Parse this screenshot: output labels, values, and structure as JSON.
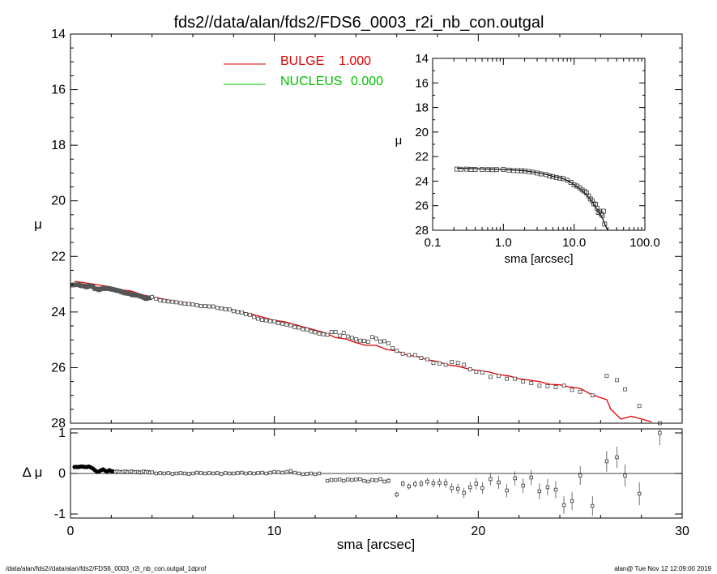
{
  "title": "fds2//data/alan/fds2/FDS6_0003_r2i_nb_con.outgal",
  "footer_left": "/data/alan/fds2//data/alan/fds2/FDS6_0003_r2i_nb_con.outgal_1dprof",
  "footer_right": "alan@  Tue Nov 12 12:09:00 2019",
  "colors": {
    "bulge": "#e00000",
    "nucleus": "#00c000",
    "data": "#000000"
  },
  "chart_data": [
    {
      "type": "scatter",
      "panel": "main",
      "xlabel": "sma [arcsec]",
      "ylabel": "μ",
      "xlim": [
        0,
        30
      ],
      "ylim": [
        28,
        14
      ],
      "y_inverted": true,
      "xticks": [
        "0",
        "10",
        "20",
        "30"
      ],
      "yticks": [
        "14",
        "16",
        "18",
        "20",
        "22",
        "24",
        "26",
        "28"
      ],
      "legend": [
        {
          "name": "BULGE",
          "value": "1.000",
          "color": "#e00000"
        },
        {
          "name": "NUCLEUS",
          "value": "0.000",
          "color": "#00c000"
        }
      ],
      "legend_position": "top-left",
      "observed": {
        "x": [
          0.1,
          0.2,
          0.3,
          0.4,
          0.5,
          0.6,
          0.7,
          0.8,
          0.9,
          1.0,
          1.1,
          1.2,
          1.3,
          1.4,
          1.5,
          1.6,
          1.7,
          1.8,
          1.9,
          2.0,
          2.1,
          2.2,
          2.3,
          2.4,
          2.5,
          2.6,
          2.7,
          2.8,
          2.9,
          3.0,
          3.1,
          3.2,
          3.3,
          3.4,
          3.5,
          3.6,
          3.7,
          3.8,
          3.9,
          4.0,
          4.2,
          4.4,
          4.6,
          4.8,
          5.0,
          5.2,
          5.4,
          5.6,
          5.8,
          6.0,
          6.2,
          6.4,
          6.6,
          6.8,
          7.0,
          7.2,
          7.4,
          7.6,
          7.8,
          8.0,
          8.2,
          8.4,
          8.6,
          8.8,
          9.0,
          9.2,
          9.4,
          9.6,
          9.8,
          10.0,
          10.2,
          10.4,
          10.6,
          10.8,
          11.0,
          11.2,
          11.4,
          11.6,
          11.8,
          12.0,
          12.2,
          12.4,
          12.6,
          12.8,
          13.0,
          13.2,
          13.4,
          13.6,
          13.8,
          14.0,
          14.2,
          14.4,
          14.6,
          14.8,
          15.0,
          15.2,
          15.4,
          15.6,
          15.8,
          16.0,
          16.3,
          16.6,
          16.9,
          17.2,
          17.5,
          17.8,
          18.1,
          18.4,
          18.7,
          19.0,
          19.3,
          19.6,
          19.9,
          20.2,
          20.6,
          21.0,
          21.4,
          21.8,
          22.2,
          22.6,
          23.0,
          23.4,
          23.8,
          24.2,
          24.6,
          25.0,
          25.6,
          26.3,
          26.8,
          27.2,
          27.9,
          28.9
        ],
        "y": [
          23.03,
          23.02,
          23.02,
          23.02,
          23.05,
          23.06,
          23.07,
          23.1,
          23.07,
          23.05,
          23.09,
          23.16,
          23.17,
          23.2,
          23.17,
          23.15,
          23.16,
          23.14,
          23.16,
          23.18,
          23.19,
          23.21,
          23.23,
          23.24,
          23.27,
          23.3,
          23.32,
          23.33,
          23.34,
          23.37,
          23.39,
          23.39,
          23.4,
          23.42,
          23.45,
          23.48,
          23.52,
          23.5,
          23.49,
          23.46,
          23.52,
          23.58,
          23.6,
          23.62,
          23.63,
          23.65,
          23.68,
          23.7,
          23.71,
          23.73,
          23.75,
          23.79,
          23.79,
          23.8,
          23.8,
          23.85,
          23.87,
          23.9,
          23.91,
          23.97,
          24.0,
          24.02,
          24.08,
          24.1,
          24.18,
          24.24,
          24.28,
          24.3,
          24.33,
          24.34,
          24.4,
          24.42,
          24.45,
          24.48,
          24.55,
          24.56,
          24.62,
          24.63,
          24.7,
          24.73,
          24.78,
          24.8,
          24.82,
          24.72,
          24.72,
          24.85,
          24.75,
          24.88,
          24.93,
          24.98,
          25.03,
          25.04,
          25.07,
          24.9,
          24.96,
          25.06,
          25.05,
          25.13,
          25.3,
          25.4,
          25.5,
          25.55,
          25.55,
          25.65,
          25.7,
          25.83,
          25.85,
          25.9,
          25.8,
          25.83,
          25.9,
          26.06,
          26.15,
          26.18,
          26.33,
          26.3,
          26.4,
          26.4,
          26.5,
          26.56,
          26.65,
          26.67,
          26.7,
          26.65,
          26.8,
          26.87,
          27.0,
          26.3,
          26.45,
          26.78,
          27.38,
          28.0
        ]
      },
      "bulge_model": {
        "x": [
          0.2,
          1.0,
          2.0,
          2.5,
          3.0,
          3.5,
          4.0,
          5.0,
          6.0,
          7.0,
          7.5,
          8.0,
          9.0,
          9.5,
          10.0,
          10.5,
          11.0,
          11.5,
          12.0,
          12.5,
          13.0,
          13.5,
          14.0,
          14.5,
          15.0,
          15.5,
          16.0,
          16.5,
          17.0,
          17.5,
          18.0,
          18.5,
          19.0,
          19.5,
          20.0,
          20.5,
          21.0,
          21.5,
          22.0,
          22.5,
          23.0,
          23.5,
          24.0,
          24.5,
          25.0,
          25.5,
          26.0,
          26.3,
          26.5,
          27.0,
          27.5,
          28.0,
          28.5
        ],
        "y": [
          22.9,
          22.98,
          23.1,
          23.2,
          23.25,
          23.38,
          23.45,
          23.6,
          23.7,
          23.82,
          23.85,
          23.92,
          24.1,
          24.2,
          24.3,
          24.35,
          24.45,
          24.55,
          24.65,
          24.75,
          24.92,
          24.97,
          25.1,
          25.2,
          25.2,
          25.35,
          25.4,
          25.55,
          25.6,
          25.72,
          25.78,
          25.9,
          25.95,
          26.05,
          26.1,
          26.15,
          26.25,
          26.3,
          26.4,
          26.45,
          26.5,
          26.6,
          26.62,
          26.7,
          26.75,
          26.95,
          27.08,
          27.15,
          27.5,
          27.85,
          27.75,
          27.85,
          27.95
        ]
      }
    },
    {
      "type": "scatter",
      "panel": "inset",
      "xlabel": "sma [arcsec]",
      "ylabel": "μ",
      "x_scale": "log",
      "xlim": [
        0.1,
        100
      ],
      "ylim": [
        28,
        14
      ],
      "y_inverted": true,
      "xticks": [
        "0.1",
        "1.0",
        "10.0",
        "100.0"
      ],
      "yticks": [
        "14",
        "16",
        "18",
        "20",
        "22",
        "24",
        "26",
        "28"
      ],
      "observed": {
        "x": [
          0.22,
          0.25,
          0.3,
          0.35,
          0.4,
          0.5,
          0.6,
          0.7,
          0.8,
          1.0,
          1.2,
          1.4,
          1.6,
          1.8,
          2.0,
          2.3,
          2.6,
          3.0,
          3.4,
          4.0,
          4.5,
          5.0,
          5.6,
          6.3,
          7.0,
          8.0,
          9.0,
          10.0,
          11.0,
          12.0,
          13.0,
          14.0,
          15.0,
          16.0,
          17.0,
          18.0,
          19.0,
          20.0,
          21.0,
          22.0,
          23.0,
          24.0,
          25.0,
          26.0,
          27.0
        ],
        "y": [
          23.02,
          23.03,
          23.02,
          23.04,
          23.05,
          23.05,
          23.06,
          23.07,
          23.06,
          23.05,
          23.1,
          23.14,
          23.15,
          23.15,
          23.18,
          23.22,
          23.27,
          23.34,
          23.41,
          23.47,
          23.58,
          23.63,
          23.7,
          23.76,
          23.8,
          23.93,
          24.1,
          24.3,
          24.4,
          24.55,
          24.72,
          24.82,
          24.95,
          25.2,
          25.45,
          25.6,
          25.85,
          25.88,
          26.2,
          26.55,
          26.45,
          26.65,
          26.8,
          26.45,
          27.5
        ]
      },
      "model": {
        "x": [
          0.22,
          0.5,
          1.0,
          2.0,
          3.0,
          4.0,
          5.0,
          6.0,
          7.0,
          8.0,
          9.0,
          10.0,
          12.0,
          14.0,
          16.0,
          18.0,
          20.0,
          22.0,
          24.0,
          26.0,
          28.0,
          30.0
        ],
        "y": [
          22.95,
          23.0,
          23.05,
          23.15,
          23.3,
          23.45,
          23.6,
          23.7,
          23.8,
          23.95,
          24.1,
          24.3,
          24.62,
          24.95,
          25.3,
          25.7,
          26.1,
          26.45,
          26.8,
          27.2,
          27.7,
          28.2
        ]
      }
    },
    {
      "type": "scatter",
      "panel": "residuals",
      "xlabel": "sma [arcsec]",
      "ylabel": "Δ μ",
      "xlim": [
        0,
        30
      ],
      "ylim": [
        -1.1,
        1.1
      ],
      "xticks": [
        "0",
        "10",
        "20",
        "30"
      ],
      "yticks": [
        "1",
        "0",
        "-1"
      ],
      "zero_line": true,
      "x": [
        0.2,
        0.3,
        0.4,
        0.5,
        0.6,
        0.7,
        0.8,
        0.9,
        1.0,
        1.1,
        1.2,
        1.3,
        1.4,
        1.5,
        1.6,
        1.7,
        1.8,
        1.9,
        2.0,
        2.1,
        2.2,
        2.3,
        2.4,
        2.5,
        2.6,
        2.7,
        2.8,
        2.9,
        3.0,
        3.1,
        3.2,
        3.3,
        3.4,
        3.5,
        3.6,
        3.7,
        3.8,
        3.9,
        4.0,
        4.2,
        4.4,
        4.6,
        4.8,
        5.0,
        5.2,
        5.4,
        5.6,
        5.8,
        6.0,
        6.2,
        6.4,
        6.6,
        6.8,
        7.0,
        7.2,
        7.4,
        7.6,
        7.8,
        8.0,
        8.2,
        8.4,
        8.6,
        8.8,
        9.0,
        9.2,
        9.4,
        9.6,
        9.8,
        10.0,
        10.2,
        10.4,
        10.6,
        10.8,
        11.0,
        11.2,
        11.4,
        11.6,
        11.8,
        12.0,
        12.2,
        12.6,
        12.8,
        13.0,
        13.2,
        13.4,
        13.6,
        13.8,
        14.0,
        14.2,
        14.4,
        14.6,
        14.8,
        15.0,
        15.2,
        15.4,
        15.6,
        16.0,
        16.3,
        16.6,
        16.9,
        17.2,
        17.5,
        17.8,
        18.1,
        18.4,
        18.7,
        19.0,
        19.3,
        19.6,
        19.9,
        20.2,
        20.6,
        21.0,
        21.4,
        21.8,
        22.2,
        22.6,
        23.0,
        23.4,
        23.8,
        24.2,
        24.6,
        25.0,
        25.6,
        26.3,
        26.8,
        27.2,
        27.9,
        28.9
      ],
      "y": [
        0.16,
        0.16,
        0.16,
        0.17,
        0.17,
        0.16,
        0.16,
        0.17,
        0.15,
        0.12,
        0.08,
        0.04,
        0.05,
        0.08,
        0.1,
        0.07,
        0.04,
        0.08,
        0.06,
        0.05,
        0.04,
        0.05,
        0.04,
        0.03,
        0.04,
        0.05,
        0.03,
        0.04,
        0.05,
        0.03,
        0.03,
        0.04,
        0.02,
        0.03,
        0.05,
        0.03,
        0.04,
        0.02,
        0.03,
        0.0,
        0.01,
        0.0,
        0.01,
        -0.01,
        0.0,
        0.01,
        0.0,
        -0.01,
        0.0,
        0.02,
        0.01,
        0.0,
        0.01,
        0.0,
        0.01,
        -0.01,
        0.01,
        0.0,
        0.0,
        0.01,
        0.02,
        0.0,
        0.01,
        0.0,
        0.01,
        0.02,
        0.0,
        0.02,
        0.04,
        0.03,
        0.02,
        0.04,
        0.06,
        0.02,
        0.0,
        -0.02,
        -0.01,
        0.0,
        -0.02,
        0.0,
        -0.18,
        -0.16,
        -0.16,
        -0.15,
        -0.18,
        -0.15,
        -0.16,
        -0.15,
        -0.14,
        -0.18,
        -0.2,
        -0.16,
        -0.17,
        -0.14,
        -0.2,
        -0.18,
        -0.52,
        -0.25,
        -0.32,
        -0.26,
        -0.25,
        -0.2,
        -0.24,
        -0.23,
        -0.24,
        -0.36,
        -0.38,
        -0.48,
        -0.34,
        -0.25,
        -0.36,
        -0.14,
        -0.22,
        -0.42,
        -0.12,
        -0.3,
        -0.1,
        -0.44,
        -0.34,
        -0.4,
        -0.78,
        -0.68,
        -0.05,
        -0.8,
        0.3,
        0.4,
        -0.05,
        -0.5,
        1.0
      ]
    }
  ]
}
